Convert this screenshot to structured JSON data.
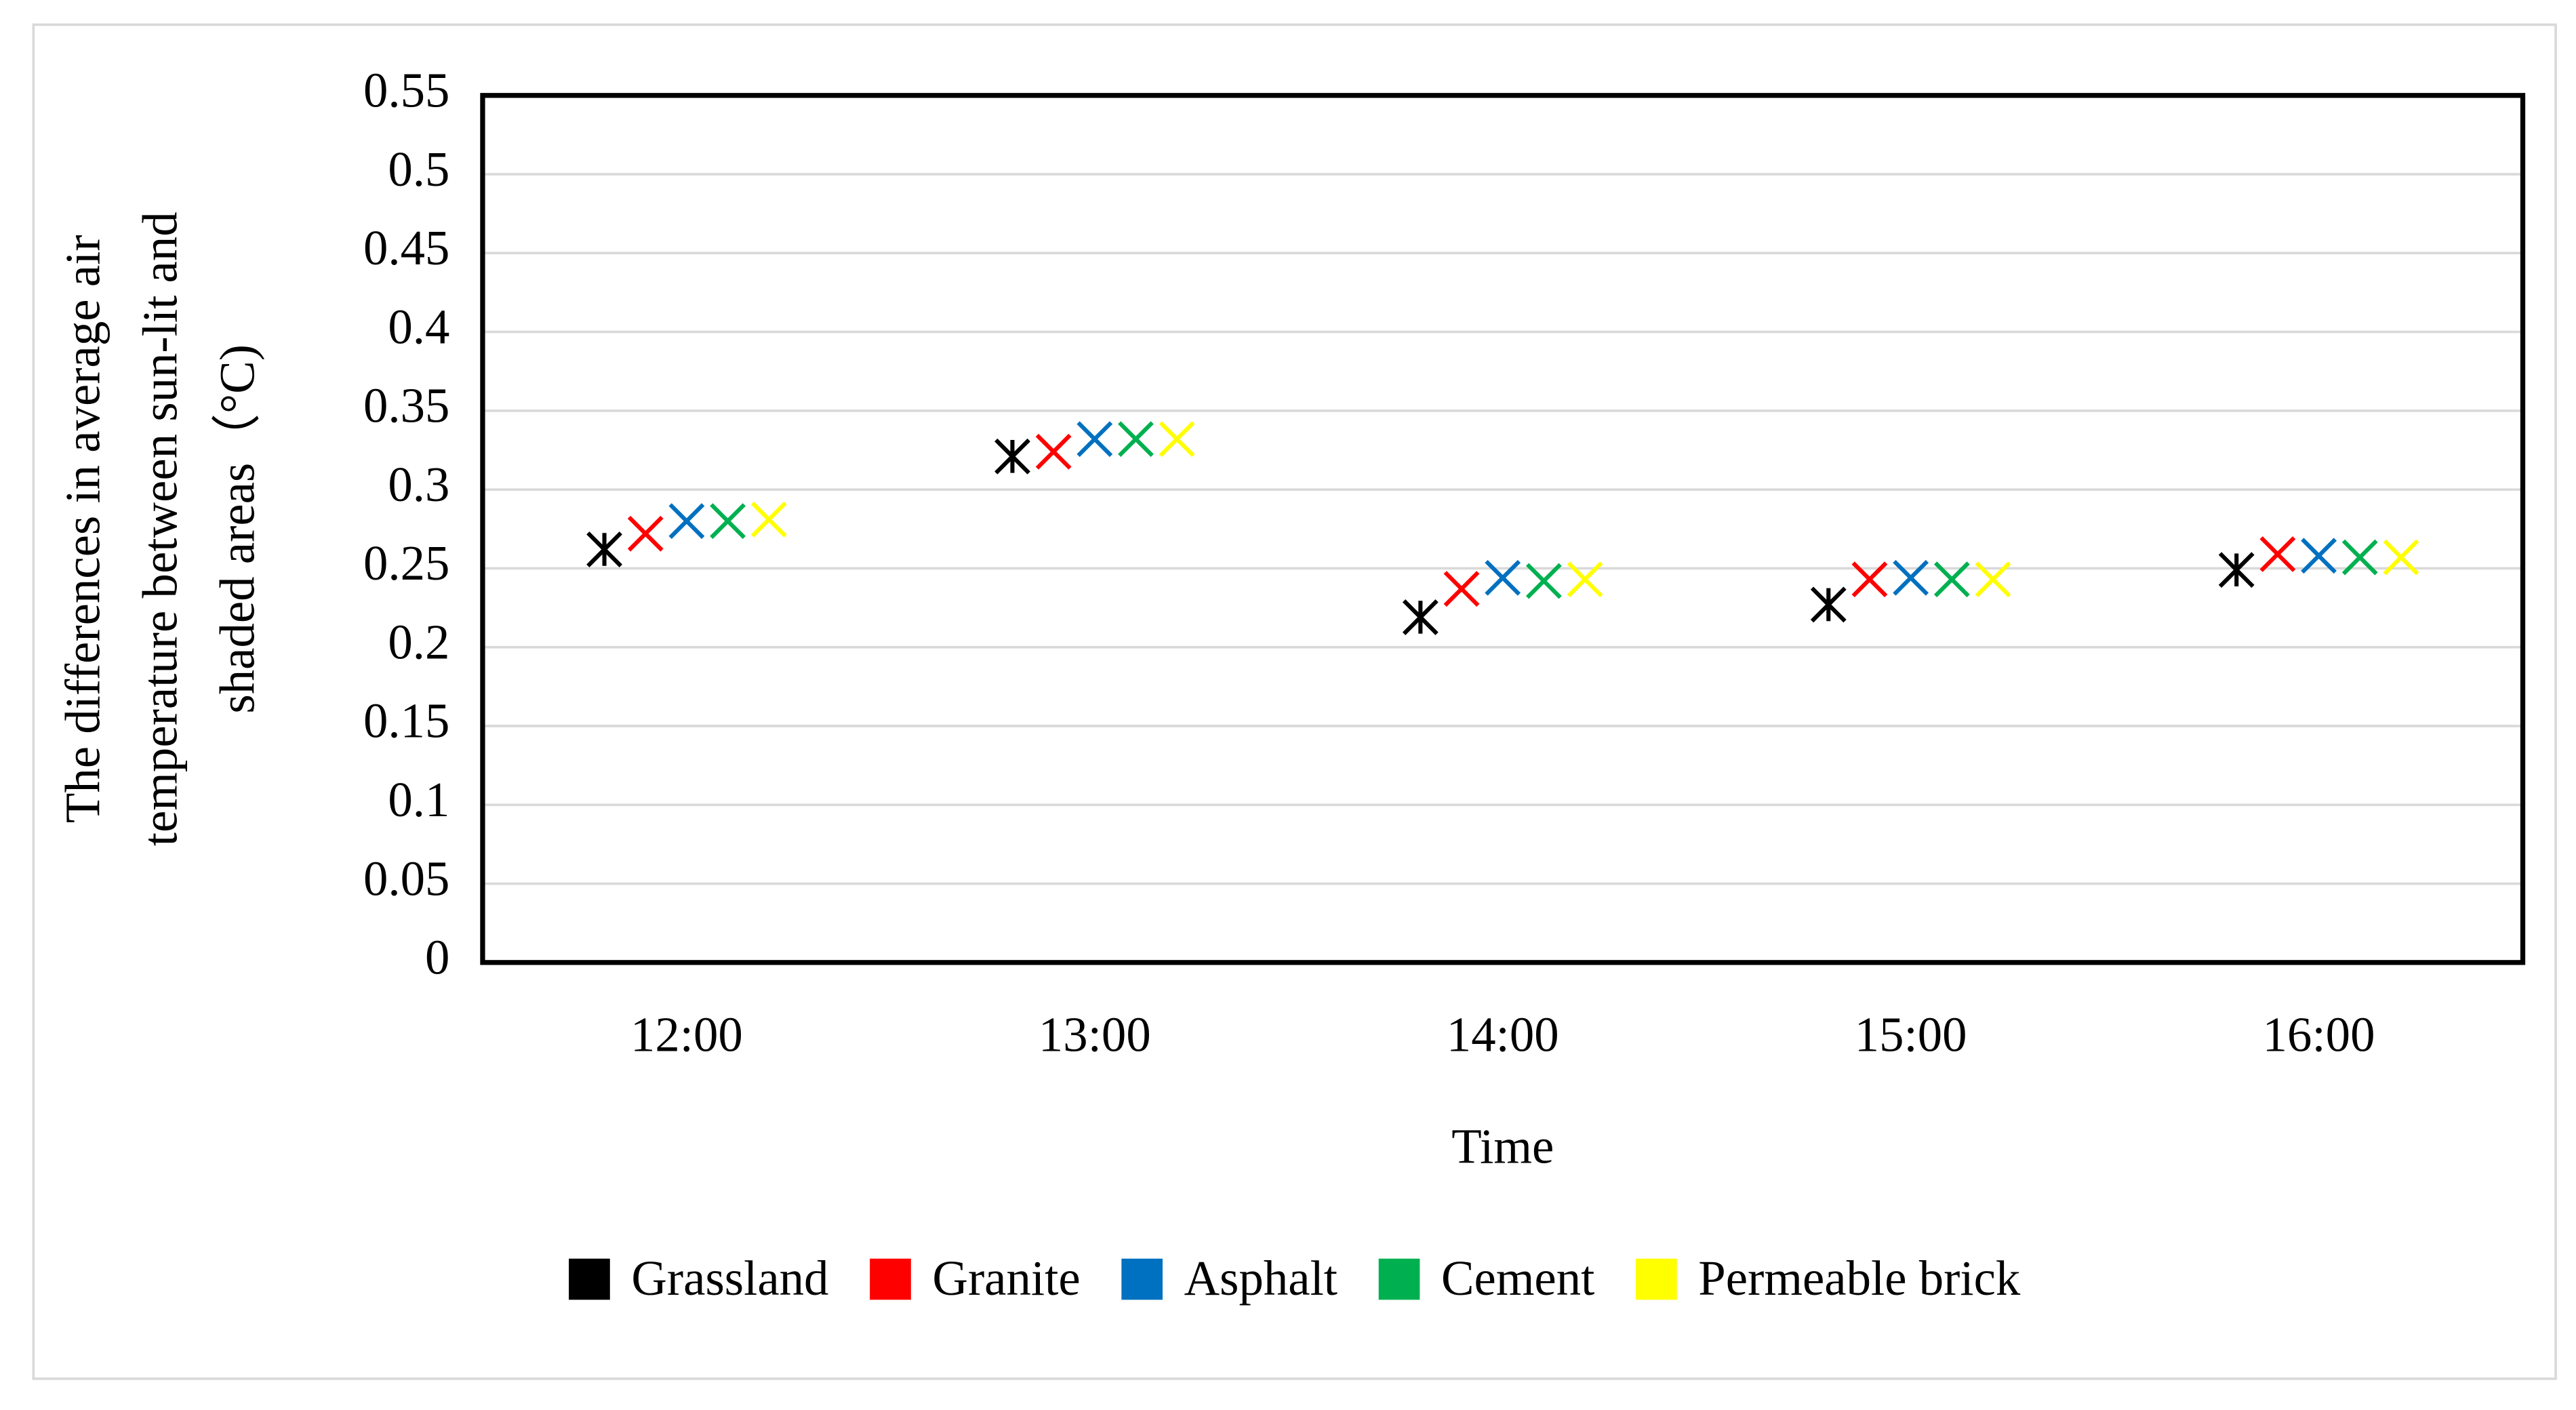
{
  "chart_data": {
    "type": "scatter",
    "ylabel": [
      "The differences in average air",
      "temperature between  sun-lit and",
      "shaded areas（°C)"
    ],
    "xlabel": "Time",
    "categories": [
      "12:00",
      "13:00",
      "14:00",
      "15:00",
      "16:00"
    ],
    "series": [
      {
        "name": "Grassland",
        "color": "#000000",
        "values": [
          0.262,
          0.321,
          0.219,
          0.227,
          0.249
        ]
      },
      {
        "name": "Granite",
        "color": "#ff0000",
        "values": [
          0.272,
          0.324,
          0.237,
          0.243,
          0.259
        ]
      },
      {
        "name": "Asphalt",
        "color": "#0070c0",
        "values": [
          0.28,
          0.332,
          0.244,
          0.244,
          0.258
        ]
      },
      {
        "name": "Cement",
        "color": "#00b050",
        "values": [
          0.28,
          0.332,
          0.242,
          0.243,
          0.257
        ]
      },
      {
        "name": "Permeable brick",
        "color": "#ffff00",
        "values": [
          0.281,
          0.332,
          0.243,
          0.243,
          0.257
        ]
      }
    ],
    "ylim": [
      0,
      0.55
    ],
    "yticks": [
      0,
      0.05,
      0.1,
      0.15,
      0.2,
      0.25,
      0.3,
      0.35,
      0.4,
      0.45,
      0.5,
      0.55
    ],
    "grid": true,
    "legend": "bottom"
  }
}
